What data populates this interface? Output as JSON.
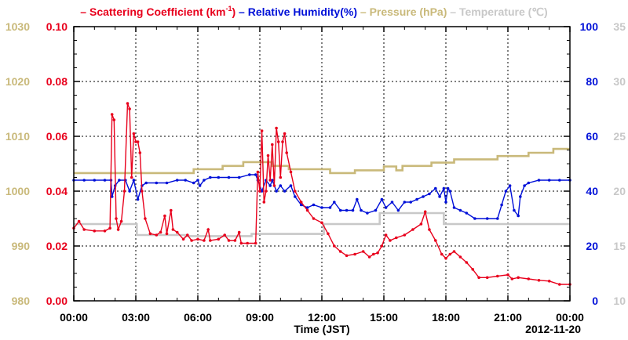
{
  "chart_data": {
    "type": "line",
    "legend": [
      {
        "key": "scat",
        "prefix": "–",
        "label": "Scattering Coefficient (km",
        "sup": "-1",
        "suffix": ")",
        "color": "#e8001c"
      },
      {
        "key": "rh",
        "prefix": "–",
        "label": "Relative Humidity(%)",
        "color": "#0010d8"
      },
      {
        "key": "pres",
        "prefix": "–",
        "label": "Pressure (hPa)",
        "color": "#c9b97a"
      },
      {
        "key": "temp",
        "prefix": "–",
        "label": "Temperature (℃)",
        "color": "#c8c8c8"
      }
    ],
    "xlabel": "Time (JST)",
    "date_label": "2012-11-20",
    "x_ticks": [
      "00:00",
      "03:00",
      "06:00",
      "09:00",
      "12:00",
      "15:00",
      "18:00",
      "21:00",
      "00:00"
    ],
    "xlim_hours": [
      0,
      24
    ],
    "axes": {
      "pressure": {
        "ticks": [
          "980",
          "990",
          "1000",
          "1010",
          "1020",
          "1030"
        ],
        "range": [
          980,
          1030
        ],
        "color": "#c9b97a"
      },
      "scattering": {
        "ticks": [
          "0.00",
          "0.02",
          "0.04",
          "0.06",
          "0.08",
          "0.10"
        ],
        "range": [
          0,
          0.1
        ],
        "color": "#e8001c"
      },
      "humidity": {
        "ticks": [
          "0",
          "20",
          "40",
          "60",
          "80",
          "100"
        ],
        "range": [
          0,
          100
        ],
        "color": "#0010d8"
      },
      "temperature": {
        "ticks": [
          "10",
          "15",
          "20",
          "25",
          "30",
          "35"
        ],
        "range": [
          10,
          35
        ],
        "color": "#c8c8c8"
      }
    },
    "grid": true,
    "series": [
      {
        "name": "Scattering Coefficient",
        "axis": "scattering",
        "color": "#e8001c",
        "markers": true,
        "points": [
          [
            0.0,
            0.0265
          ],
          [
            0.25,
            0.029
          ],
          [
            0.5,
            0.026
          ],
          [
            1.0,
            0.0255
          ],
          [
            1.5,
            0.0255
          ],
          [
            1.75,
            0.0265
          ],
          [
            1.85,
            0.068
          ],
          [
            1.95,
            0.066
          ],
          [
            2.05,
            0.03
          ],
          [
            2.15,
            0.026
          ],
          [
            2.3,
            0.029
          ],
          [
            2.45,
            0.04
          ],
          [
            2.6,
            0.072
          ],
          [
            2.7,
            0.07
          ],
          [
            2.8,
            0.045
          ],
          [
            2.9,
            0.061
          ],
          [
            3.0,
            0.058
          ],
          [
            3.1,
            0.058
          ],
          [
            3.2,
            0.054
          ],
          [
            3.3,
            0.04
          ],
          [
            3.45,
            0.03
          ],
          [
            3.7,
            0.0245
          ],
          [
            4.0,
            0.024
          ],
          [
            4.2,
            0.025
          ],
          [
            4.4,
            0.031
          ],
          [
            4.5,
            0.0245
          ],
          [
            4.7,
            0.033
          ],
          [
            4.8,
            0.026
          ],
          [
            5.0,
            0.025
          ],
          [
            5.3,
            0.0225
          ],
          [
            5.5,
            0.024
          ],
          [
            5.7,
            0.022
          ],
          [
            6.0,
            0.0225
          ],
          [
            6.3,
            0.022
          ],
          [
            6.5,
            0.026
          ],
          [
            6.6,
            0.022
          ],
          [
            7.0,
            0.0225
          ],
          [
            7.3,
            0.024
          ],
          [
            7.5,
            0.022
          ],
          [
            7.8,
            0.022
          ],
          [
            8.0,
            0.025
          ],
          [
            8.1,
            0.021
          ],
          [
            8.4,
            0.021
          ],
          [
            8.8,
            0.021
          ],
          [
            8.9,
            0.047
          ],
          [
            9.0,
            0.04
          ],
          [
            9.1,
            0.062
          ],
          [
            9.2,
            0.036
          ],
          [
            9.3,
            0.04
          ],
          [
            9.4,
            0.053
          ],
          [
            9.5,
            0.044
          ],
          [
            9.6,
            0.057
          ],
          [
            9.7,
            0.042
          ],
          [
            9.8,
            0.063
          ],
          [
            9.9,
            0.058
          ],
          [
            10.0,
            0.045
          ],
          [
            10.1,
            0.058
          ],
          [
            10.2,
            0.061
          ],
          [
            10.3,
            0.054
          ],
          [
            10.5,
            0.047
          ],
          [
            10.7,
            0.04
          ],
          [
            11.0,
            0.036
          ],
          [
            11.3,
            0.033
          ],
          [
            11.6,
            0.03
          ],
          [
            12.0,
            0.0285
          ],
          [
            12.3,
            0.0245
          ],
          [
            12.6,
            0.02
          ],
          [
            12.9,
            0.018
          ],
          [
            13.2,
            0.0165
          ],
          [
            13.6,
            0.017
          ],
          [
            14.0,
            0.018
          ],
          [
            14.3,
            0.016
          ],
          [
            14.5,
            0.017
          ],
          [
            14.7,
            0.0175
          ],
          [
            14.9,
            0.02
          ],
          [
            15.1,
            0.024
          ],
          [
            15.3,
            0.022
          ],
          [
            15.6,
            0.023
          ],
          [
            16.0,
            0.024
          ],
          [
            16.4,
            0.026
          ],
          [
            16.8,
            0.028
          ],
          [
            17.0,
            0.0325
          ],
          [
            17.2,
            0.026
          ],
          [
            17.5,
            0.022
          ],
          [
            17.8,
            0.017
          ],
          [
            18.0,
            0.0155
          ],
          [
            18.2,
            0.017
          ],
          [
            18.4,
            0.018
          ],
          [
            18.7,
            0.016
          ],
          [
            19.0,
            0.014
          ],
          [
            19.3,
            0.0115
          ],
          [
            19.6,
            0.0085
          ],
          [
            20.0,
            0.0085
          ],
          [
            20.5,
            0.009
          ],
          [
            21.0,
            0.0095
          ],
          [
            21.2,
            0.008
          ],
          [
            21.5,
            0.0085
          ],
          [
            22.0,
            0.008
          ],
          [
            22.5,
            0.0075
          ],
          [
            23.0,
            0.0072
          ],
          [
            23.5,
            0.006
          ],
          [
            24.0,
            0.006
          ]
        ]
      },
      {
        "name": "Relative Humidity",
        "axis": "humidity",
        "color": "#0010d8",
        "markers": true,
        "points": [
          [
            0.0,
            44
          ],
          [
            0.5,
            44
          ],
          [
            1.0,
            44
          ],
          [
            1.5,
            44
          ],
          [
            1.8,
            44
          ],
          [
            1.85,
            38
          ],
          [
            2.0,
            42
          ],
          [
            2.2,
            44
          ],
          [
            2.5,
            44
          ],
          [
            2.7,
            40
          ],
          [
            2.9,
            44
          ],
          [
            3.1,
            37
          ],
          [
            3.3,
            42
          ],
          [
            3.5,
            43
          ],
          [
            4.0,
            43
          ],
          [
            4.5,
            43
          ],
          [
            5.0,
            44
          ],
          [
            5.4,
            44
          ],
          [
            5.8,
            43
          ],
          [
            6.0,
            44
          ],
          [
            6.1,
            42
          ],
          [
            6.3,
            44
          ],
          [
            6.6,
            45
          ],
          [
            7.0,
            45
          ],
          [
            7.5,
            45
          ],
          [
            8.0,
            45
          ],
          [
            8.5,
            46
          ],
          [
            8.8,
            46
          ],
          [
            8.9,
            44
          ],
          [
            9.1,
            40
          ],
          [
            9.3,
            44
          ],
          [
            9.5,
            42
          ],
          [
            9.6,
            44
          ],
          [
            9.8,
            40
          ],
          [
            10.0,
            42
          ],
          [
            10.2,
            40
          ],
          [
            10.5,
            42
          ],
          [
            10.7,
            38
          ],
          [
            11.0,
            35
          ],
          [
            11.3,
            34
          ],
          [
            11.6,
            35
          ],
          [
            12.0,
            34
          ],
          [
            12.4,
            34
          ],
          [
            12.6,
            36
          ],
          [
            12.9,
            33
          ],
          [
            13.2,
            33
          ],
          [
            13.5,
            33
          ],
          [
            13.7,
            37
          ],
          [
            13.9,
            33
          ],
          [
            14.2,
            32
          ],
          [
            14.6,
            33
          ],
          [
            14.9,
            37
          ],
          [
            15.1,
            34
          ],
          [
            15.4,
            36
          ],
          [
            15.7,
            33
          ],
          [
            16.0,
            36
          ],
          [
            16.3,
            36
          ],
          [
            16.6,
            37
          ],
          [
            16.9,
            38
          ],
          [
            17.2,
            39
          ],
          [
            17.5,
            41
          ],
          [
            17.7,
            38
          ],
          [
            17.9,
            41
          ],
          [
            18.0,
            36
          ],
          [
            18.1,
            41
          ],
          [
            18.2,
            40
          ],
          [
            18.4,
            34
          ],
          [
            18.7,
            33
          ],
          [
            19.0,
            32
          ],
          [
            19.4,
            30
          ],
          [
            20.0,
            30
          ],
          [
            20.5,
            30
          ],
          [
            20.7,
            35
          ],
          [
            20.9,
            40
          ],
          [
            21.1,
            42
          ],
          [
            21.3,
            33
          ],
          [
            21.5,
            31
          ],
          [
            21.6,
            38
          ],
          [
            21.8,
            42
          ],
          [
            22.0,
            43
          ],
          [
            22.5,
            44
          ],
          [
            23.0,
            44
          ],
          [
            23.5,
            44
          ],
          [
            24.0,
            44
          ]
        ]
      },
      {
        "name": "Pressure",
        "axis": "pressure",
        "color": "#c9b97a",
        "markers": false,
        "points": [
          [
            0.0,
            1003.3
          ],
          [
            5.8,
            1003.3
          ],
          [
            5.8,
            1004.0
          ],
          [
            7.2,
            1004.0
          ],
          [
            7.2,
            1004.6
          ],
          [
            8.2,
            1004.6
          ],
          [
            8.2,
            1005.3
          ],
          [
            9.6,
            1005.3
          ],
          [
            9.6,
            1004.6
          ],
          [
            10.4,
            1004.6
          ],
          [
            10.4,
            1004.0
          ],
          [
            12.4,
            1004.0
          ],
          [
            12.4,
            1003.3
          ],
          [
            13.6,
            1003.3
          ],
          [
            13.6,
            1003.8
          ],
          [
            15.0,
            1003.8
          ],
          [
            15.0,
            1004.5
          ],
          [
            15.6,
            1004.5
          ],
          [
            15.6,
            1003.8
          ],
          [
            15.9,
            1003.8
          ],
          [
            15.9,
            1004.6
          ],
          [
            17.3,
            1004.6
          ],
          [
            17.3,
            1005.2
          ],
          [
            18.4,
            1005.2
          ],
          [
            18.4,
            1005.8
          ],
          [
            20.5,
            1005.8
          ],
          [
            20.5,
            1006.4
          ],
          [
            22.0,
            1006.4
          ],
          [
            22.0,
            1007.0
          ],
          [
            23.2,
            1007.0
          ],
          [
            23.2,
            1007.7
          ],
          [
            24.0,
            1007.7
          ]
        ]
      },
      {
        "name": "Temperature",
        "axis": "temperature",
        "color": "#c8c8c8",
        "markers": false,
        "points": [
          [
            0.0,
            17.0
          ],
          [
            3.05,
            17.0
          ],
          [
            3.05,
            16.0
          ],
          [
            5.4,
            16.0
          ],
          [
            5.4,
            15.9
          ],
          [
            8.6,
            15.9
          ],
          [
            8.6,
            16.1
          ],
          [
            12.1,
            16.1
          ],
          [
            12.1,
            17.0
          ],
          [
            14.8,
            17.0
          ],
          [
            14.8,
            18.0
          ],
          [
            17.9,
            18.0
          ],
          [
            17.9,
            17.0
          ],
          [
            24.0,
            17.0
          ]
        ]
      }
    ]
  }
}
